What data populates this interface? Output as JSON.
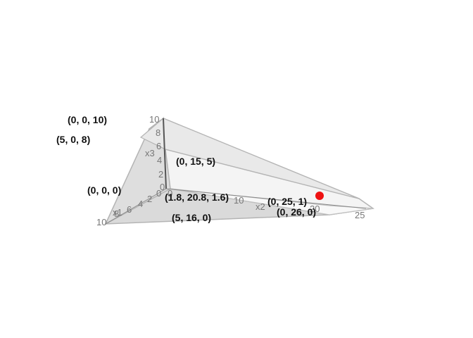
{
  "colors": {
    "face_light": "#f4f4f4",
    "face_mid": "#e7e7e7",
    "face_dark": "#dadada",
    "edge": "#b4b4b4",
    "axis": "#555555",
    "point": "#ee1111"
  },
  "axes": {
    "x1": {
      "title": "x1",
      "ticks": [
        "10",
        "8",
        "6",
        "4",
        "2",
        "0"
      ]
    },
    "x2": {
      "title": "x2",
      "ticks": [
        "0",
        "10",
        "20",
        "25"
      ]
    },
    "x3": {
      "title": "x3",
      "ticks": [
        "10",
        "8",
        "6",
        "4",
        "2",
        "0"
      ]
    }
  },
  "vertex_labels": [
    "(0, 0, 10)",
    "(5, 0, 8)",
    "(0, 15, 5)",
    "(0, 0, 0)",
    "(1.8, 20.8, 1.6)",
    "(5, 16, 0)",
    "(0, 25, 1)",
    "(0, 26, 0)"
  ],
  "highlight_point": {
    "x1": 0,
    "x2": 25,
    "x3": 1,
    "color": "#ee1111"
  }
}
